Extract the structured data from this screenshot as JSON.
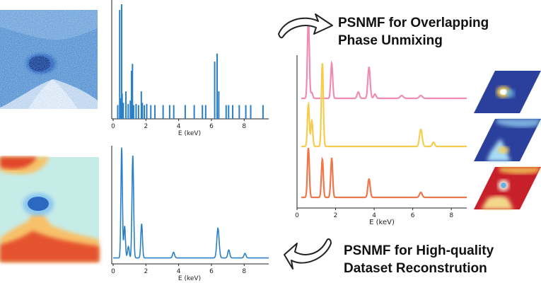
{
  "colors": {
    "spectrum_blue": "#2a7fc6",
    "phase_pink": "#f08cb4",
    "phase_yellow": "#f6cc4e",
    "phase_orange": "#f0774a",
    "map_dark_blue": "#2c3e9e",
    "map_red": "#c8202a"
  },
  "labels": {
    "unmixing_title_line1": "PSNMF for Overlapping",
    "unmixing_title_line2": "Phase Unmixing",
    "reconstruction_title_line1": "PSNMF for High-quality",
    "reconstruction_title_line2": "Dataset Reconstrution"
  },
  "icons": {
    "top": "curved-arrow-right-icon",
    "bottom": "curved-arrow-left-icon"
  },
  "images": {
    "noisy_map": "noisy-blue-elemental-map",
    "reconstructed_map": "reconstructed-color-map",
    "phase_maps": [
      "phase-map-1",
      "phase-map-2",
      "phase-map-3"
    ]
  },
  "chart_data": [
    {
      "type": "bar",
      "id": "noisy-spectrum",
      "xlabel": "E (keV)",
      "xlim": [
        0,
        9.5
      ],
      "x_ticks": [
        0,
        2,
        4,
        6,
        8
      ],
      "series": [
        {
          "color": "#2a7fc6",
          "x": [
            0.28,
            0.4,
            0.45,
            0.52,
            0.55,
            0.62,
            0.78,
            0.92,
            1.05,
            1.12,
            1.18,
            1.25,
            1.4,
            1.55,
            1.72,
            1.78,
            1.9,
            2.05,
            2.3,
            2.55,
            3.05,
            3.45,
            3.7,
            4.4,
            4.95,
            5.45,
            5.65,
            6.2,
            6.35,
            6.45,
            6.9,
            7.05,
            7.3,
            7.7,
            8.1,
            8.4,
            9.15
          ],
          "values": [
            0.12,
            0.95,
            0.18,
            1.0,
            0.22,
            0.14,
            0.24,
            0.13,
            0.16,
            0.42,
            0.48,
            0.12,
            0.13,
            0.12,
            0.24,
            0.14,
            0.12,
            0.13,
            0.12,
            0.12,
            0.12,
            0.12,
            0.12,
            0.12,
            0.12,
            0.12,
            0.12,
            0.5,
            0.57,
            0.24,
            0.12,
            0.12,
            0.12,
            0.12,
            0.12,
            0.12,
            0.12
          ]
        }
      ]
    },
    {
      "type": "line",
      "id": "reconstructed-spectrum",
      "xlabel": "E (keV)",
      "xlim": [
        0,
        9.5
      ],
      "x_ticks": [
        0,
        2,
        4,
        6,
        8
      ],
      "peaks": [
        {
          "x": 0.52,
          "h": 0.97,
          "w": 0.045
        },
        {
          "x": 0.7,
          "h": 0.28,
          "w": 0.05
        },
        {
          "x": 0.93,
          "h": 0.1,
          "w": 0.05
        },
        {
          "x": 1.2,
          "h": 0.9,
          "w": 0.05
        },
        {
          "x": 1.74,
          "h": 0.3,
          "w": 0.05
        },
        {
          "x": 3.69,
          "h": 0.05,
          "w": 0.06
        },
        {
          "x": 6.4,
          "h": 0.26,
          "w": 0.07
        },
        {
          "x": 7.06,
          "h": 0.07,
          "w": 0.06
        },
        {
          "x": 8.05,
          "h": 0.04,
          "w": 0.06
        }
      ],
      "baseline": 0.04
    },
    {
      "type": "line",
      "id": "phase-spectra",
      "xlabel": "E (keV)",
      "xlim": [
        0,
        8.8
      ],
      "x_ticks": [
        0,
        2,
        4,
        6,
        8
      ],
      "series": [
        {
          "color": "#f08cb4",
          "offset": 0.7,
          "baseline": 0.035,
          "peaks": [
            {
              "x": 0.52,
              "h": 0.56,
              "w": 0.05
            },
            {
              "x": 0.7,
              "h": 0.04,
              "w": 0.05
            },
            {
              "x": 1.74,
              "h": 0.25,
              "w": 0.05
            },
            {
              "x": 3.13,
              "h": 0.045,
              "w": 0.06
            },
            {
              "x": 3.69,
              "h": 0.22,
              "w": 0.06
            },
            {
              "x": 4.0,
              "h": 0.03,
              "w": 0.06
            },
            {
              "x": 5.4,
              "h": 0.02,
              "w": 0.08
            },
            {
              "x": 6.4,
              "h": 0.02,
              "w": 0.08
            }
          ]
        },
        {
          "color": "#f6cc4e",
          "offset": 0.36,
          "baseline": 0.035,
          "peaks": [
            {
              "x": 0.52,
              "h": 0.3,
              "w": 0.05
            },
            {
              "x": 0.7,
              "h": 0.18,
              "w": 0.05
            },
            {
              "x": 1.25,
              "h": 0.59,
              "w": 0.05
            },
            {
              "x": 6.4,
              "h": 0.12,
              "w": 0.07
            },
            {
              "x": 7.06,
              "h": 0.03,
              "w": 0.06
            }
          ]
        },
        {
          "color": "#f0774a",
          "offset": 0.0,
          "baseline": 0.035,
          "peaks": [
            {
              "x": 0.52,
              "h": 0.35,
              "w": 0.05
            },
            {
              "x": 1.25,
              "h": 0.27,
              "w": 0.05
            },
            {
              "x": 1.74,
              "h": 0.28,
              "w": 0.05
            },
            {
              "x": 3.69,
              "h": 0.13,
              "w": 0.06
            },
            {
              "x": 6.4,
              "h": 0.035,
              "w": 0.07
            }
          ]
        }
      ]
    }
  ]
}
